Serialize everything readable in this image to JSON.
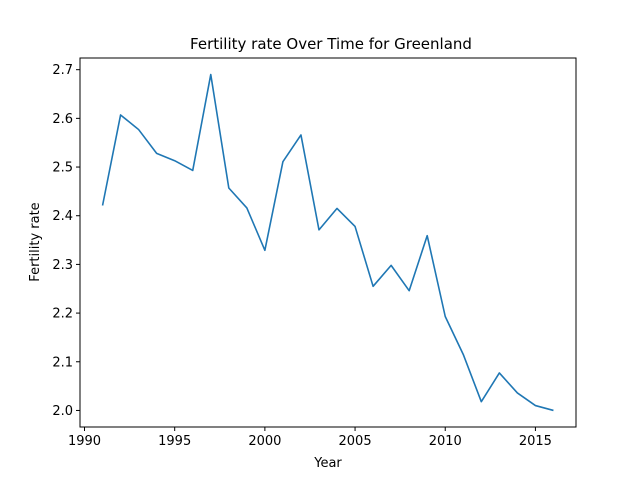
{
  "chart_data": {
    "type": "line",
    "title": "Fertility rate Over Time for Greenland",
    "xlabel": "Year",
    "ylabel": "Fertility rate",
    "xlim": [
      1989.75,
      2017.25
    ],
    "ylim": [
      1.966,
      2.724
    ],
    "xticks": [
      1990,
      1995,
      2000,
      2005,
      2010,
      2015
    ],
    "yticks": [
      2.0,
      2.1,
      2.2,
      2.3,
      2.4,
      2.5,
      2.6,
      2.7
    ],
    "xtick_labels": [
      "1990",
      "1995",
      "2000",
      "2005",
      "2010",
      "2015"
    ],
    "ytick_labels": [
      "2.0",
      "2.1",
      "2.2",
      "2.3",
      "2.4",
      "2.5",
      "2.6",
      "2.7"
    ],
    "grid": false,
    "legend": "none",
    "series": [
      {
        "color": "#1f77b4",
        "x": [
          1991,
          1992,
          1993,
          1994,
          1995,
          1996,
          1997,
          1998,
          1999,
          2000,
          2001,
          2002,
          2003,
          2004,
          2005,
          2006,
          2007,
          2008,
          2009,
          2010,
          2011,
          2012,
          2013,
          2014,
          2015,
          2016
        ],
        "y": [
          2.421,
          2.607,
          2.577,
          2.528,
          2.513,
          2.493,
          2.69,
          2.457,
          2.416,
          2.329,
          2.511,
          2.566,
          2.371,
          2.415,
          2.378,
          2.255,
          2.298,
          2.246,
          2.359,
          2.193,
          2.115,
          2.018,
          2.077,
          2.036,
          2.01,
          2.0
        ]
      }
    ]
  }
}
